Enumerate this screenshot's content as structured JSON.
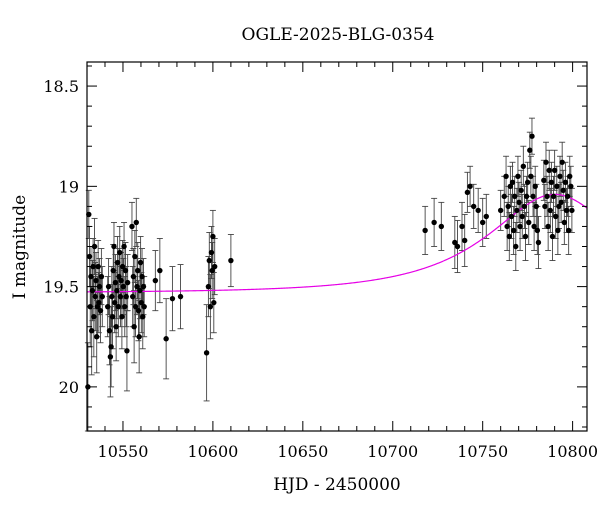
{
  "chart_data": {
    "type": "scatter",
    "title": "OGLE-2025-BLG-0354",
    "xlabel": "HJD - 2450000",
    "ylabel": "I magnitude",
    "xlim": [
      10530,
      10808
    ],
    "ylim": [
      20.22,
      18.38
    ],
    "y_inverted": true,
    "x_ticks": [
      {
        "value": 10550,
        "label": "10550"
      },
      {
        "value": 10600,
        "label": "10600"
      },
      {
        "value": 10650,
        "label": "10650"
      },
      {
        "value": 10700,
        "label": "10700"
      },
      {
        "value": 10750,
        "label": "10750"
      },
      {
        "value": 10800,
        "label": "10800"
      }
    ],
    "y_ticks": [
      {
        "value": 18.5,
        "label": "18.5"
      },
      {
        "value": 19,
        "label": "19"
      },
      {
        "value": 19.5,
        "label": "19.5"
      },
      {
        "value": 20,
        "label": "20"
      }
    ],
    "x_minor_step": 10,
    "y_minor_step": 0.1,
    "grid": false,
    "legend": "none",
    "colors": {
      "points": "#000000",
      "errorbars": "#444444",
      "model": "#e600e6"
    },
    "model": {
      "t0": 10790,
      "baseline_mag": 19.53,
      "peak_mag": 19.04,
      "tE": 68
    },
    "points": [
      [
        10530.5,
        20.0,
        0.22
      ],
      [
        10531.0,
        19.14,
        0.12
      ],
      [
        10531.4,
        19.35,
        0.15
      ],
      [
        10531.8,
        19.6,
        0.2
      ],
      [
        10532.2,
        19.45,
        0.15
      ],
      [
        10532.6,
        19.72,
        0.22
      ],
      [
        10533.0,
        19.52,
        0.15
      ],
      [
        10533.4,
        19.4,
        0.14
      ],
      [
        10533.8,
        19.65,
        0.2
      ],
      [
        10534.2,
        19.3,
        0.14
      ],
      [
        10534.6,
        19.55,
        0.17
      ],
      [
        10535.0,
        19.47,
        0.14
      ],
      [
        10535.4,
        19.75,
        0.18
      ],
      [
        10535.8,
        19.6,
        0.15
      ],
      [
        10536.2,
        19.4,
        0.13
      ],
      [
        10536.6,
        19.58,
        0.15
      ],
      [
        10537.0,
        19.5,
        0.14
      ],
      [
        10537.5,
        19.62,
        0.16
      ],
      [
        10538.0,
        19.45,
        0.14
      ],
      [
        10538.5,
        19.55,
        0.15
      ],
      [
        10541.5,
        19.6,
        0.15
      ],
      [
        10542.0,
        19.5,
        0.14
      ],
      [
        10542.5,
        19.72,
        0.17
      ],
      [
        10543.0,
        19.85,
        0.2
      ],
      [
        10543.4,
        19.8,
        0.2
      ],
      [
        10543.8,
        19.55,
        0.15
      ],
      [
        10544.2,
        19.65,
        0.16
      ],
      [
        10544.6,
        19.42,
        0.13
      ],
      [
        10545.0,
        19.3,
        0.12
      ],
      [
        10545.4,
        19.58,
        0.15
      ],
      [
        10545.8,
        19.48,
        0.14
      ],
      [
        10546.2,
        19.7,
        0.17
      ],
      [
        10546.6,
        19.52,
        0.14
      ],
      [
        10547.0,
        19.38,
        0.13
      ],
      [
        10547.4,
        19.6,
        0.15
      ],
      [
        10547.8,
        19.45,
        0.14
      ],
      [
        10548.2,
        19.33,
        0.13
      ],
      [
        10548.6,
        19.55,
        0.15
      ],
      [
        10549.0,
        19.47,
        0.14
      ],
      [
        10549.4,
        19.65,
        0.16
      ],
      [
        10549.8,
        19.4,
        0.13
      ],
      [
        10550.2,
        19.5,
        0.14
      ],
      [
        10550.6,
        19.3,
        0.12
      ],
      [
        10551.0,
        19.6,
        0.15
      ],
      [
        10551.4,
        19.42,
        0.14
      ],
      [
        10551.8,
        19.55,
        0.15
      ],
      [
        10552.2,
        19.82,
        0.2
      ],
      [
        10552.6,
        19.48,
        0.14
      ],
      [
        10555.0,
        19.2,
        0.12
      ],
      [
        10555.4,
        19.55,
        0.15
      ],
      [
        10555.8,
        19.45,
        0.14
      ],
      [
        10556.2,
        19.7,
        0.18
      ],
      [
        10556.6,
        19.35,
        0.13
      ],
      [
        10557.0,
        19.6,
        0.15
      ],
      [
        10557.4,
        19.18,
        0.12
      ],
      [
        10557.8,
        19.5,
        0.14
      ],
      [
        10558.2,
        19.42,
        0.14
      ],
      [
        10558.6,
        19.62,
        0.15
      ],
      [
        10559.0,
        19.75,
        0.18
      ],
      [
        10559.4,
        19.52,
        0.14
      ],
      [
        10559.8,
        19.38,
        0.13
      ],
      [
        10560.2,
        19.58,
        0.15
      ],
      [
        10560.6,
        19.45,
        0.14
      ],
      [
        10561.0,
        19.65,
        0.16
      ],
      [
        10561.4,
        19.5,
        0.14
      ],
      [
        10561.8,
        19.6,
        0.15
      ],
      [
        10568.0,
        19.47,
        0.15
      ],
      [
        10570.5,
        19.42,
        0.16
      ],
      [
        10574.0,
        19.76,
        0.2
      ],
      [
        10577.5,
        19.56,
        0.16
      ],
      [
        10582.0,
        19.55,
        0.16
      ],
      [
        10596.5,
        19.83,
        0.24
      ],
      [
        10597.5,
        19.5,
        0.15
      ],
      [
        10598.0,
        19.37,
        0.14
      ],
      [
        10598.6,
        19.6,
        0.16
      ],
      [
        10599.2,
        19.33,
        0.13
      ],
      [
        10599.6,
        19.42,
        0.14
      ],
      [
        10600.0,
        19.25,
        0.13
      ],
      [
        10600.5,
        19.58,
        0.15
      ],
      [
        10601.0,
        19.4,
        0.14
      ],
      [
        10610.0,
        19.37,
        0.13
      ],
      [
        10718.0,
        19.22,
        0.12
      ],
      [
        10723.0,
        19.18,
        0.12
      ],
      [
        10727.0,
        19.2,
        0.12
      ],
      [
        10734.5,
        19.28,
        0.13
      ],
      [
        10736.0,
        19.3,
        0.13
      ],
      [
        10738.5,
        19.2,
        0.12
      ],
      [
        10740.0,
        19.27,
        0.13
      ],
      [
        10741.5,
        19.03,
        0.1
      ],
      [
        10743.0,
        19.0,
        0.1
      ],
      [
        10745.0,
        19.1,
        0.11
      ],
      [
        10747.5,
        19.12,
        0.11
      ],
      [
        10750.0,
        19.18,
        0.12
      ],
      [
        10752.0,
        19.15,
        0.11
      ],
      [
        10760.0,
        19.12,
        0.1
      ],
      [
        10762.0,
        19.05,
        0.1
      ],
      [
        10763.0,
        18.95,
        0.1
      ],
      [
        10763.6,
        19.2,
        0.12
      ],
      [
        10764.2,
        19.1,
        0.1
      ],
      [
        10764.8,
        19.25,
        0.12
      ],
      [
        10765.4,
        19.0,
        0.1
      ],
      [
        10766.0,
        19.15,
        0.11
      ],
      [
        10766.6,
        18.98,
        0.1
      ],
      [
        10767.2,
        19.22,
        0.12
      ],
      [
        10767.8,
        19.05,
        0.1
      ],
      [
        10768.4,
        19.3,
        0.12
      ],
      [
        10769.0,
        19.12,
        0.11
      ],
      [
        10769.6,
        18.95,
        0.1
      ],
      [
        10770.2,
        19.08,
        0.1
      ],
      [
        10770.8,
        19.2,
        0.12
      ],
      [
        10771.4,
        19.02,
        0.1
      ],
      [
        10772.0,
        19.15,
        0.11
      ],
      [
        10772.6,
        18.9,
        0.1
      ],
      [
        10773.2,
        19.1,
        0.11
      ],
      [
        10773.8,
        19.25,
        0.12
      ],
      [
        10774.4,
        19.05,
        0.1
      ],
      [
        10775.0,
        18.98,
        0.1
      ],
      [
        10775.6,
        19.18,
        0.11
      ],
      [
        10776.2,
        18.82,
        0.09
      ],
      [
        10776.8,
        18.95,
        0.1
      ],
      [
        10777.4,
        18.75,
        0.09
      ],
      [
        10778.0,
        19.05,
        0.1
      ],
      [
        10778.6,
        19.2,
        0.12
      ],
      [
        10779.2,
        19.0,
        0.1
      ],
      [
        10779.8,
        19.1,
        0.11
      ],
      [
        10780.4,
        19.22,
        0.12
      ],
      [
        10781.0,
        19.28,
        0.13
      ],
      [
        10784.0,
        18.97,
        0.1
      ],
      [
        10784.6,
        19.1,
        0.11
      ],
      [
        10785.2,
        18.88,
        0.1
      ],
      [
        10785.8,
        19.05,
        0.1
      ],
      [
        10786.4,
        19.2,
        0.12
      ],
      [
        10787.0,
        18.92,
        0.1
      ],
      [
        10787.6,
        19.12,
        0.11
      ],
      [
        10788.2,
        18.98,
        0.1
      ],
      [
        10788.8,
        19.25,
        0.12
      ],
      [
        10789.4,
        19.05,
        0.1
      ],
      [
        10790.0,
        18.92,
        0.1
      ],
      [
        10790.6,
        19.15,
        0.11
      ],
      [
        10791.2,
        19.0,
        0.1
      ],
      [
        10791.8,
        19.22,
        0.12
      ],
      [
        10792.4,
        19.1,
        0.11
      ],
      [
        10793.0,
        18.95,
        0.1
      ],
      [
        10793.6,
        19.08,
        0.1
      ],
      [
        10794.2,
        18.88,
        0.1
      ],
      [
        10794.8,
        19.02,
        0.1
      ],
      [
        10795.4,
        19.18,
        0.11
      ],
      [
        10796.0,
        18.98,
        0.1
      ],
      [
        10796.6,
        19.12,
        0.11
      ],
      [
        10797.2,
        19.05,
        0.1
      ],
      [
        10797.8,
        19.22,
        0.12
      ],
      [
        10798.4,
        18.95,
        0.1
      ],
      [
        10799.0,
        19.0,
        0.1
      ],
      [
        10799.6,
        19.12,
        0.11
      ]
    ]
  }
}
